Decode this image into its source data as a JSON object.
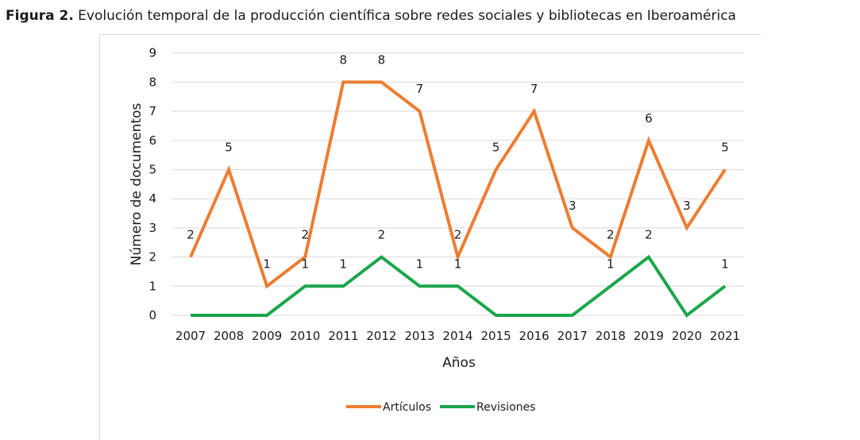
{
  "caption": {
    "label": "Figura 2.",
    "text": " Evolución temporal de la producción científica sobre redes sociales y bibliotecas en Iberoamérica"
  },
  "chart_data": {
    "type": "line",
    "categories": [
      "2007",
      "2008",
      "2009",
      "2010",
      "2011",
      "2012",
      "2013",
      "2014",
      "2015",
      "2016",
      "2017",
      "2018",
      "2019",
      "2020",
      "2021"
    ],
    "series": [
      {
        "name": "Artículos",
        "color": "#ed7d31",
        "values": [
          2,
          5,
          1,
          2,
          8,
          8,
          7,
          2,
          5,
          7,
          3,
          2,
          6,
          3,
          5
        ]
      },
      {
        "name": "Revisiones",
        "color": "#1aa64a",
        "values": [
          0,
          0,
          0,
          1,
          1,
          2,
          1,
          1,
          0,
          0,
          0,
          1,
          2,
          0,
          1
        ]
      }
    ],
    "data_labels": {
      "Artículos": [
        "2",
        "5",
        "1",
        "2",
        "8",
        "8",
        "7",
        "2",
        "5",
        "7",
        "3",
        "2",
        "6",
        "3",
        "5"
      ],
      "Revisiones": [
        "",
        "",
        "",
        "1",
        "1",
        "2",
        "1",
        "1",
        "",
        "",
        "",
        "1",
        "2",
        "",
        "1"
      ]
    },
    "xlabel": "Años",
    "ylabel": "Número de documentos",
    "ylim": [
      0,
      9
    ],
    "yticks": [
      "0",
      "1",
      "2",
      "3",
      "4",
      "5",
      "6",
      "7",
      "8",
      "9"
    ],
    "grid": true,
    "legend_position": "bottom"
  }
}
